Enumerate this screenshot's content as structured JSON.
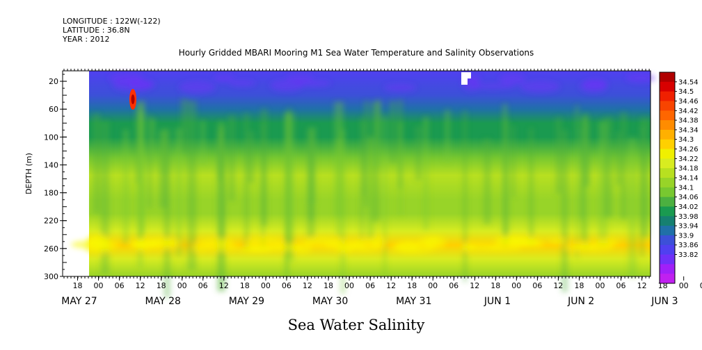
{
  "header": {
    "longitude": "LONGITUDE : 122W(-122)",
    "latitude": "LATITUDE : 36.8N",
    "year": "YEAR : 2012"
  },
  "chart_data": {
    "type": "heatmap",
    "title": "Hourly Gridded MBARI Mooring M1 Sea Water Temperature and Salinity Observations",
    "xlabel": "",
    "ylabel": "DEPTH (m)",
    "bottom_label": "Sea Water Salinity",
    "yticks": [
      "20",
      "60",
      "100",
      "140",
      "180",
      "220",
      "260",
      "300"
    ],
    "ytick_values": [
      20,
      60,
      100,
      140,
      180,
      220,
      260,
      300
    ],
    "ylim": [
      5,
      300
    ],
    "x_hour_ticks": [
      "18",
      "00",
      "06",
      "12",
      "18",
      "00",
      "06",
      "12",
      "18",
      "00",
      "06",
      "12",
      "18",
      "00",
      "06",
      "12",
      "18",
      "00",
      "06",
      "12",
      "18",
      "00",
      "06",
      "12",
      "18",
      "00",
      "06",
      "12",
      "18",
      "00",
      "06",
      "12"
    ],
    "x_date_labels": [
      "MAY 27",
      "MAY 28",
      "MAY 29",
      "MAY 30",
      "MAY 31",
      "JUN  1",
      "JUN  2",
      "JUN  3"
    ],
    "colorbar_levels": [
      "34.54",
      "34.5",
      "34.46",
      "34.42",
      "34.38",
      "34.34",
      "34.3",
      "34.26",
      "34.22",
      "34.18",
      "34.14",
      "34.1",
      "34.06",
      "34.02",
      "33.98",
      "33.94",
      "33.9",
      "33.86",
      "33.82"
    ],
    "colorbar_colors": [
      "#b00000",
      "#d80000",
      "#f02000",
      "#f84400",
      "#ff6600",
      "#ff8c00",
      "#ffb000",
      "#ffd000",
      "#f0f000",
      "#d8ec20",
      "#b8e020",
      "#98d428",
      "#78c830",
      "#4cb040",
      "#1a9a50",
      "#168070",
      "#2070a8",
      "#3c50d8",
      "#5040f0",
      "#7030f8",
      "#a020f8",
      "#c020f0"
    ],
    "profile": [
      {
        "depth": 5,
        "value": 33.9
      },
      {
        "depth": 40,
        "value": 33.94
      },
      {
        "depth": 60,
        "value": 33.99
      },
      {
        "depth": 80,
        "value": 34.04
      },
      {
        "depth": 100,
        "value": 34.07
      },
      {
        "depth": 130,
        "value": 34.12
      },
      {
        "depth": 155,
        "value": 34.19
      },
      {
        "depth": 190,
        "value": 34.17
      },
      {
        "depth": 210,
        "value": 34.18
      },
      {
        "depth": 235,
        "value": 34.24
      },
      {
        "depth": 255,
        "value": 34.3
      },
      {
        "depth": 275,
        "value": 34.25
      },
      {
        "depth": 300,
        "value": 34.17
      }
    ],
    "anomaly": {
      "label_time": "MAY 28 10:00",
      "depth": 35,
      "max_value": 34.54
    }
  }
}
